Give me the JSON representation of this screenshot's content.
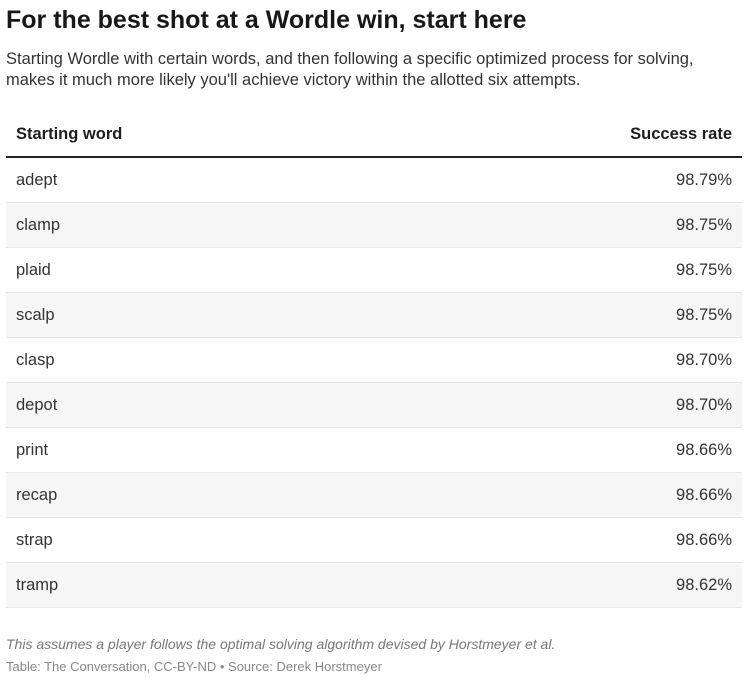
{
  "header": {
    "title": "For the best shot at a Wordle win, start here",
    "subtitle": "Starting Wordle with certain words, and then following a specific optimized process for solving, makes it much more likely you'll achieve victory within the allotted six attempts."
  },
  "table": {
    "columns": [
      "Starting word",
      "Success rate"
    ],
    "rows": [
      [
        "adept",
        "98.79%"
      ],
      [
        "clamp",
        "98.75%"
      ],
      [
        "plaid",
        "98.75%"
      ],
      [
        "scalp",
        "98.75%"
      ],
      [
        "clasp",
        "98.70%"
      ],
      [
        "depot",
        "98.70%"
      ],
      [
        "print",
        "98.66%"
      ],
      [
        "recap",
        "98.66%"
      ],
      [
        "strap",
        "98.66%"
      ],
      [
        "tramp",
        "98.62%"
      ]
    ]
  },
  "footer": {
    "note": "This assumes a player follows the optimal solving algorithm devised by Horstmeyer et al.",
    "source": "Table: The Conversation, CC-BY-ND • Source: Derek Horstmeyer"
  }
}
